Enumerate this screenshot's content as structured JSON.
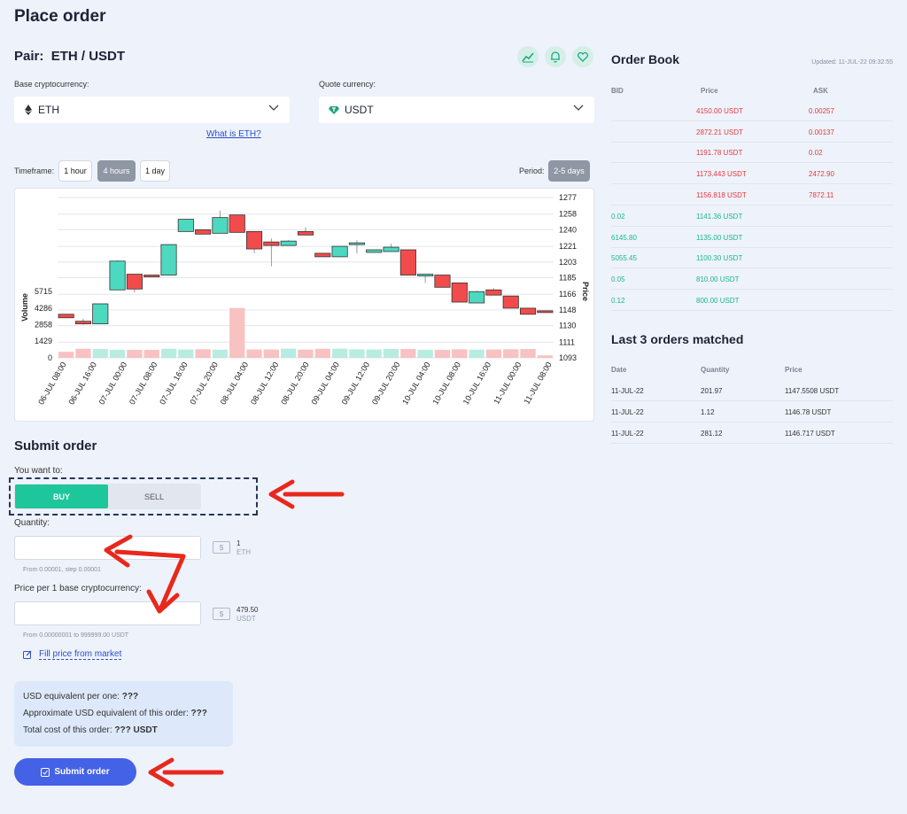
{
  "page_title": "Place order",
  "pair": {
    "label": "Pair:",
    "value": "ETH / USDT"
  },
  "header_icons": [
    "chart-icon",
    "bell-icon",
    "heart-icon"
  ],
  "base": {
    "label": "Base cryptocurrency:",
    "value": "ETH",
    "icon": "eth-icon"
  },
  "quote": {
    "label": "Quote currency:",
    "value": "USDT",
    "icon": "usdt-icon"
  },
  "what_is_link": "What is ETH?",
  "timeframe": {
    "label": "Timeframe:",
    "options": [
      "1 hour",
      "4 hours",
      "1 day"
    ],
    "selected": "4 hours"
  },
  "period": {
    "label": "Period:",
    "value": "2-5 days"
  },
  "chart_data": {
    "type": "candlestick",
    "xlabel": "",
    "ylabel_left": "Volume",
    "ylabel_right": "Price",
    "price_ticks": [
      1277,
      1258,
      1240,
      1221,
      1203,
      1185,
      1166,
      1148,
      1130,
      1111,
      1093
    ],
    "volume_ticks": [
      5715,
      4286,
      2858,
      1429,
      0
    ],
    "x_ticks": [
      "06-JUL 08:00",
      "06-JUL 16:00",
      "07-JUL 00:00",
      "07-JUL 08:00",
      "07-JUL 16:00",
      "07-JUL 20:00",
      "08-JUL 04:00",
      "08-JUL 12:00",
      "08-JUL 20:00",
      "09-JUL 04:00",
      "09-JUL 12:00",
      "09-JUL 20:00",
      "10-JUL 04:00",
      "10-JUL 08:00",
      "10-JUL 16:00",
      "11-JUL 00:00",
      "11-JUL 08:00"
    ],
    "candles": [
      {
        "o": 1143,
        "c": 1139,
        "h": 1143,
        "l": 1139
      },
      {
        "o": 1135,
        "c": 1132,
        "h": 1138,
        "l": 1131
      },
      {
        "o": 1132,
        "c": 1155,
        "h": 1155,
        "l": 1132
      },
      {
        "o": 1171,
        "c": 1204,
        "h": 1205,
        "l": 1171
      },
      {
        "o": 1189,
        "c": 1172,
        "h": 1189,
        "l": 1168
      },
      {
        "o": 1188,
        "c": 1186,
        "h": 1188,
        "l": 1186
      },
      {
        "o": 1188,
        "c": 1223,
        "h": 1223,
        "l": 1188
      },
      {
        "o": 1238,
        "c": 1252,
        "h": 1252,
        "l": 1238
      },
      {
        "o": 1240,
        "c": 1235,
        "h": 1240,
        "l": 1235
      },
      {
        "o": 1236,
        "c": 1254,
        "h": 1262,
        "l": 1236
      },
      {
        "o": 1257,
        "c": 1237,
        "h": 1257,
        "l": 1237
      },
      {
        "o": 1238,
        "c": 1218,
        "h": 1238,
        "l": 1213
      },
      {
        "o": 1226,
        "c": 1222,
        "h": 1230,
        "l": 1198
      },
      {
        "o": 1222,
        "c": 1227,
        "h": 1228,
        "l": 1222
      },
      {
        "o": 1238,
        "c": 1234,
        "h": 1243,
        "l": 1234
      },
      {
        "o": 1213,
        "c": 1209,
        "h": 1213,
        "l": 1209
      },
      {
        "o": 1209,
        "c": 1221,
        "h": 1221,
        "l": 1209
      },
      {
        "o": 1223,
        "c": 1225,
        "h": 1228,
        "l": 1213
      },
      {
        "o": 1214,
        "c": 1217,
        "h": 1217,
        "l": 1214
      },
      {
        "o": 1215,
        "c": 1220,
        "h": 1224,
        "l": 1215
      },
      {
        "o": 1217,
        "c": 1188,
        "h": 1217,
        "l": 1188
      },
      {
        "o": 1188,
        "c": 1189,
        "h": 1189,
        "l": 1179
      },
      {
        "o": 1188,
        "c": 1174,
        "h": 1188,
        "l": 1174
      },
      {
        "o": 1179,
        "c": 1157,
        "h": 1179,
        "l": 1157
      },
      {
        "o": 1156,
        "c": 1169,
        "h": 1170,
        "l": 1156
      },
      {
        "o": 1171,
        "c": 1165,
        "h": 1173,
        "l": 1165
      },
      {
        "o": 1164,
        "c": 1150,
        "h": 1164,
        "l": 1150
      },
      {
        "o": 1150,
        "c": 1143,
        "h": 1150,
        "l": 1143
      },
      {
        "o": 1147,
        "c": 1145,
        "h": 1147,
        "l": 1145
      }
    ],
    "volumes": [
      520,
      780,
      760,
      700,
      690,
      690,
      780,
      720,
      740,
      710,
      4290,
      720,
      720,
      790,
      710,
      780,
      790,
      730,
      720,
      770,
      760,
      700,
      690,
      740,
      710,
      720,
      740,
      760,
      210
    ]
  },
  "submit_section": {
    "title": "Submit order",
    "want_label": "You want to:",
    "buy": "BUY",
    "sell": "SELL",
    "quantity_label": "Quantity:",
    "quantity_hint": "From 0.00001, step 0.00001",
    "quantity_value": "1",
    "quantity_unit": "ETH",
    "price_label": "Price per 1 base cryptocurrency:",
    "price_hint": "From 0.00000001 to 999999.00 USDT",
    "price_value": "479.50",
    "price_unit": "USDT",
    "fill_link": "Fill price from market",
    "usd_per_one_label": "USD equivalent per one:",
    "usd_per_one_value": "???",
    "approx_label": "Approximate USD equivalent of this order:",
    "approx_value": "???",
    "total_label": "Total cost of this order:",
    "total_value": "??? USDT",
    "submit_button": "Submit order"
  },
  "order_book": {
    "title": "Order Book",
    "updated": "Updated: 11-JUL-22 09:32:55",
    "headers": {
      "bid": "BID",
      "price": "Price",
      "ask": "ASK"
    },
    "asks": [
      {
        "price": "4150.00 USDT",
        "ask": "0.00257"
      },
      {
        "price": "2872.21 USDT",
        "ask": "0.00137"
      },
      {
        "price": "1191.78 USDT",
        "ask": "0.02"
      },
      {
        "price": "1173.443 USDT",
        "ask": "2472.90"
      },
      {
        "price": "1156.818 USDT",
        "ask": "7872.11"
      }
    ],
    "bids": [
      {
        "bid": "0.02",
        "price": "1141.36 USDT"
      },
      {
        "bid": "6145.80",
        "price": "1135.00 USDT"
      },
      {
        "bid": "5055.45",
        "price": "1100.30 USDT"
      },
      {
        "bid": "0.05",
        "price": "810.00 USDT"
      },
      {
        "bid": "0.12",
        "price": "800.00 USDT"
      }
    ]
  },
  "matched": {
    "title": "Last 3 orders matched",
    "headers": {
      "date": "Date",
      "quantity": "Quantity",
      "price": "Price"
    },
    "rows": [
      {
        "date": "11-JUL-22",
        "quantity": "201.97",
        "price": "1147.5508 USDT"
      },
      {
        "date": "11-JUL-22",
        "quantity": "1.12",
        "price": "1146.78 USDT"
      },
      {
        "date": "11-JUL-22",
        "quantity": "281.12",
        "price": "1146.717 USDT"
      }
    ]
  },
  "colors": {
    "up": "#4dd9c0",
    "down": "#f24b4b",
    "buy": "#1ec69b",
    "submit": "#4462e6",
    "arrow": "#e8281c"
  }
}
